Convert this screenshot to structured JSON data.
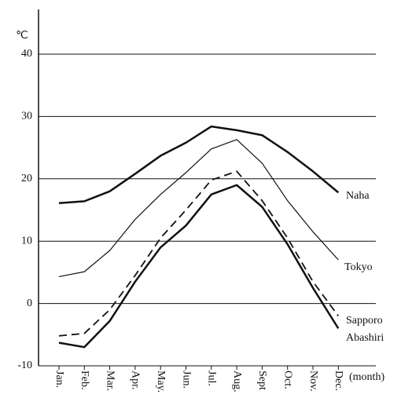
{
  "chart_data": {
    "type": "line",
    "y_unit": "℃",
    "x_label": "(month)",
    "categories": [
      "Jan.",
      "Feb.",
      "Mar.",
      "Apr.",
      "May.",
      "Jun.",
      "Jul.",
      "Aug.",
      "Sept",
      "Oct.",
      "Nov.",
      "Dec."
    ],
    "series": [
      {
        "name": "Naha",
        "color": "#111111",
        "width": 2.5,
        "dashed": false,
        "values": [
          16.1,
          16.4,
          18,
          20.8,
          23.7,
          25.8,
          28.4,
          27.8,
          27,
          24.3,
          21.2,
          17.8
        ]
      },
      {
        "name": "Tokyo",
        "color": "#111111",
        "width": 1.2,
        "dashed": false,
        "values": [
          4.3,
          5.1,
          8.5,
          13.5,
          17.5,
          21,
          24.8,
          26.3,
          22.5,
          16.5,
          11.5,
          7
        ]
      },
      {
        "name": "Sapporo",
        "color": "#111111",
        "width": 1.8,
        "dashed": true,
        "values": [
          -5.2,
          -4.8,
          -1,
          4.5,
          10.5,
          15,
          19.8,
          21.2,
          16.5,
          10.5,
          3.5,
          -2
        ]
      },
      {
        "name": "Abashiri",
        "color": "#111111",
        "width": 2.5,
        "dashed": false,
        "values": [
          -6.3,
          -7,
          -2.8,
          3.5,
          9,
          12.5,
          17.5,
          19,
          15.5,
          9.5,
          2.5,
          -4
        ]
      }
    ],
    "ylim": [
      -10,
      40
    ],
    "yticks": [
      -10,
      0,
      10,
      20,
      30,
      40
    ],
    "grid": true
  }
}
